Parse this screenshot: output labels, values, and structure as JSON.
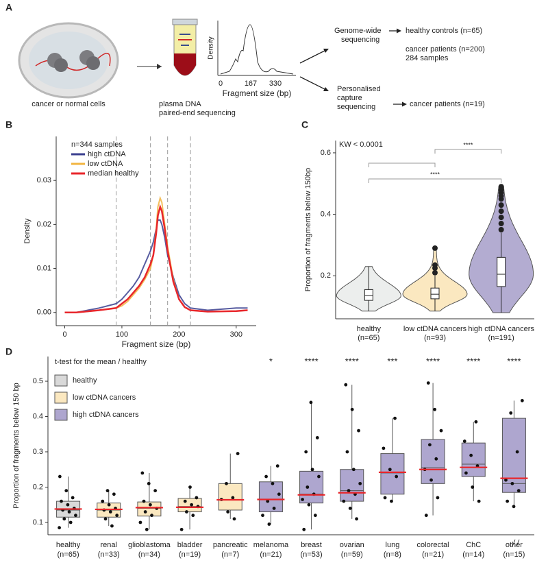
{
  "panel_labels": [
    "A",
    "B",
    "C",
    "D"
  ],
  "diagram": {
    "cells_label": "cancer or normal cells",
    "plasma_label": [
      "plasma DNA",
      "paired-end sequencing"
    ],
    "inset": {
      "y_label": "Density",
      "x_label": "Fragment size (bp)",
      "x_tick_labels": [
        "0",
        "167",
        "330"
      ]
    },
    "genome_wide": [
      "Genome-wide",
      "sequencing"
    ],
    "genome_results": [
      "healthy controls (n=65)",
      "cancer patients (n=200)",
      "284 samples"
    ],
    "capture": [
      "Personalised",
      "capture",
      "sequencing"
    ],
    "capture_result": "cancer patients (n=19)"
  },
  "chart_data": [
    {
      "type": "line",
      "x_label": "Fragment size (bp)",
      "y_label": "Density",
      "legend_title": "n=344 samples",
      "x": [
        0,
        20,
        60,
        90,
        100,
        110,
        120,
        130,
        140,
        150,
        155,
        160,
        163,
        167,
        170,
        175,
        180,
        190,
        200,
        210,
        220,
        250,
        300,
        320
      ],
      "series": [
        {
          "name": "high ctDNA",
          "color": "#3a3f8f",
          "values": [
            0,
            0,
            0.001,
            0.002,
            0.003,
            0.0045,
            0.006,
            0.008,
            0.011,
            0.014,
            0.016,
            0.019,
            0.021,
            0.021,
            0.02,
            0.017,
            0.013,
            0.008,
            0.004,
            0.002,
            0.001,
            0.0005,
            0.001,
            0.001
          ]
        },
        {
          "name": "low ctDNA",
          "color": "#f2b441",
          "values": [
            0,
            0,
            0.0005,
            0.001,
            0.0015,
            0.0025,
            0.004,
            0.0055,
            0.0075,
            0.01,
            0.013,
            0.019,
            0.024,
            0.026,
            0.025,
            0.02,
            0.015,
            0.0075,
            0.003,
            0.0012,
            0.0005,
            0.0002,
            0.0003,
            0.0005
          ]
        },
        {
          "name": "median healthy",
          "color": "#e8262b",
          "values": [
            0,
            0,
            0.0005,
            0.001,
            0.002,
            0.003,
            0.0045,
            0.006,
            0.008,
            0.011,
            0.013,
            0.018,
            0.022,
            0.024,
            0.023,
            0.019,
            0.014,
            0.007,
            0.003,
            0.0012,
            0.0005,
            0.0002,
            0.0003,
            0.0005
          ]
        }
      ],
      "vlines": [
        90,
        150,
        180,
        220
      ],
      "xlim": [
        -15,
        335
      ],
      "xticks": [
        0,
        100,
        200,
        300
      ],
      "ylim": [
        -0.003,
        0.04
      ],
      "yticks": [
        {
          "value": 0,
          "label": "0.00"
        },
        {
          "value": 0.01,
          "label": "0.01"
        },
        {
          "value": 0.02,
          "label": "0.02"
        },
        {
          "value": 0.03,
          "label": "0.03"
        }
      ]
    },
    {
      "type": "violin",
      "y_label": "Proportion of fragments below 150bp",
      "annotation": "KW < 0.0001",
      "categories": [
        "healthy",
        "low ctDNA cancers",
        "high ctDNA cancers"
      ],
      "n_labels": [
        "(n=65)",
        "(n=93)",
        "(n=191)"
      ],
      "colors": [
        "#eceeed",
        "#fbe8c0",
        "#b3acd1"
      ],
      "q1": [
        0.12,
        0.125,
        0.165
      ],
      "median": [
        0.135,
        0.14,
        0.205
      ],
      "q3": [
        0.155,
        0.16,
        0.26
      ],
      "whisker_low": [
        0.085,
        0.085,
        0.08
      ],
      "whisker_high": [
        0.23,
        0.2,
        0.34
      ],
      "outliers": [
        [],
        [
          0.21,
          0.225,
          0.235,
          0.29
        ],
        [
          0.35,
          0.37,
          0.39,
          0.41,
          0.43,
          0.45,
          0.46,
          0.47,
          0.48,
          0.49
        ]
      ],
      "comparisons": [
        {
          "pair": [
            1,
            2
          ],
          "label": "****"
        },
        {
          "pair": [
            0,
            1
          ]
        },
        {
          "pair": [
            0,
            2
          ],
          "label": "****"
        }
      ],
      "ylim": [
        0.06,
        0.64
      ],
      "yticks": [
        0.2,
        0.4,
        0.6
      ]
    },
    {
      "type": "box",
      "y_label": "Proportion of fragments below 150 bp",
      "legend": {
        "title": "t-test for the mean / healthy",
        "entries": [
          {
            "name": "healthy",
            "color": "#d9d9d9"
          },
          {
            "name": "low ctDNA cancers",
            "color": "#fbe8c0"
          },
          {
            "name": "high ctDNA cancers",
            "color": "#aea6cf"
          }
        ]
      },
      "categories": [
        "healthy",
        "renal",
        "glioblastoma",
        "bladder",
        "pancreatic",
        "melanoma",
        "breast",
        "ovarian",
        "lung",
        "colorectal",
        "ChC",
        "other"
      ],
      "n_labels": [
        "(n=65)",
        "(n=33)",
        "(n=34)",
        "(n=19)",
        "(n=7)",
        "(n=21)",
        "(n=53)",
        "(n=59)",
        "(n=8)",
        "(n=21)",
        "(n=14)",
        "(n=15)"
      ],
      "groups": [
        0,
        1,
        1,
        1,
        1,
        2,
        2,
        2,
        2,
        2,
        2,
        2
      ],
      "stars": [
        null,
        null,
        null,
        null,
        null,
        "*",
        "****",
        "****",
        "***",
        "****",
        "****",
        "****"
      ],
      "q1": [
        0.115,
        0.115,
        0.118,
        0.13,
        0.135,
        0.13,
        0.155,
        0.16,
        0.18,
        0.21,
        0.23,
        0.185
      ],
      "median": [
        0.135,
        0.135,
        0.14,
        0.145,
        0.165,
        0.165,
        0.18,
        0.19,
        0.24,
        0.255,
        0.265,
        0.21
      ],
      "q3": [
        0.16,
        0.155,
        0.158,
        0.168,
        0.21,
        0.215,
        0.245,
        0.25,
        0.295,
        0.335,
        0.325,
        0.395
      ],
      "whisker_low": [
        0.085,
        0.09,
        0.08,
        0.08,
        0.11,
        0.095,
        0.08,
        0.11,
        0.16,
        0.12,
        0.16,
        0.145
      ],
      "whisker_high": [
        0.23,
        0.19,
        0.24,
        0.2,
        0.295,
        0.26,
        0.44,
        0.49,
        0.395,
        0.495,
        0.385,
        0.445
      ],
      "mean": [
        0.138,
        0.137,
        0.142,
        0.143,
        0.164,
        0.165,
        0.178,
        0.184,
        0.242,
        0.25,
        0.256,
        0.225
      ],
      "points": [
        [
          0.085,
          0.1,
          0.11,
          0.12,
          0.13,
          0.135,
          0.14,
          0.15,
          0.16,
          0.17,
          0.19,
          0.23
        ],
        [
          0.09,
          0.11,
          0.12,
          0.13,
          0.135,
          0.14,
          0.15,
          0.16,
          0.18,
          0.19
        ],
        [
          0.08,
          0.1,
          0.12,
          0.13,
          0.14,
          0.15,
          0.16,
          0.19,
          0.21,
          0.24
        ],
        [
          0.08,
          0.12,
          0.13,
          0.145,
          0.15,
          0.16,
          0.17,
          0.2
        ],
        [
          0.11,
          0.13,
          0.165,
          0.17,
          0.21,
          0.295
        ],
        [
          0.095,
          0.12,
          0.14,
          0.16,
          0.18,
          0.21,
          0.23,
          0.26
        ],
        [
          0.08,
          0.12,
          0.15,
          0.165,
          0.18,
          0.2,
          0.23,
          0.25,
          0.3,
          0.34,
          0.44
        ],
        [
          0.11,
          0.14,
          0.16,
          0.18,
          0.19,
          0.21,
          0.25,
          0.3,
          0.36,
          0.42,
          0.49
        ],
        [
          0.16,
          0.17,
          0.23,
          0.25,
          0.31,
          0.395
        ],
        [
          0.12,
          0.17,
          0.22,
          0.25,
          0.28,
          0.32,
          0.36,
          0.42,
          0.495
        ],
        [
          0.16,
          0.2,
          0.24,
          0.26,
          0.29,
          0.33,
          0.385
        ],
        [
          0.145,
          0.16,
          0.19,
          0.21,
          0.22,
          0.3,
          0.41,
          0.445
        ]
      ],
      "ylim": [
        0.065,
        0.57
      ],
      "yticks": [
        0.1,
        0.2,
        0.3,
        0.4,
        0.5
      ]
    }
  ]
}
